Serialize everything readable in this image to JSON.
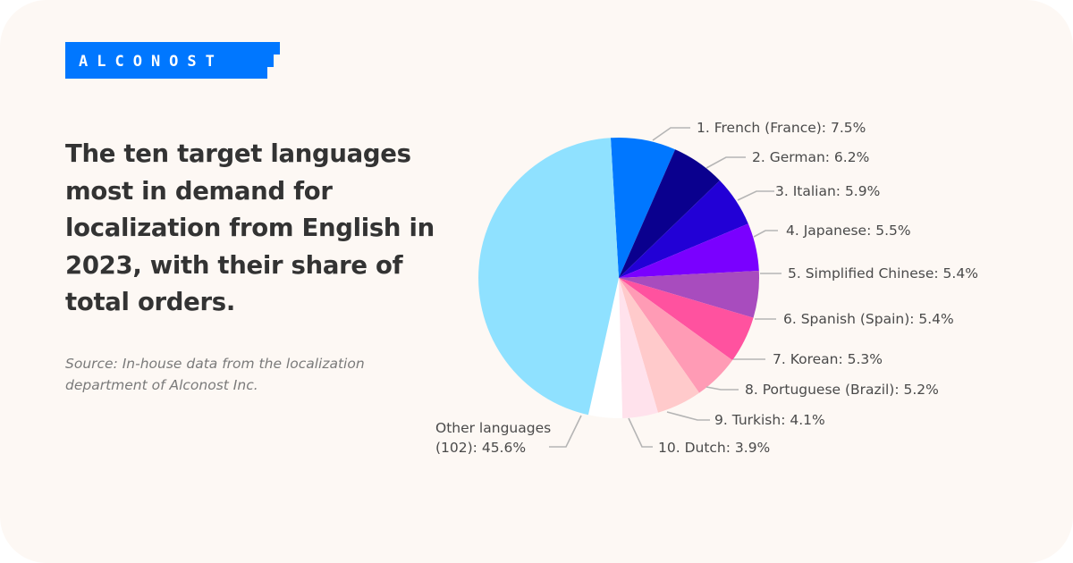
{
  "brand": {
    "name": "ALCONOST",
    "color": "#0077ff"
  },
  "heading": "The ten target languages most in demand for localization from English in 2023, with their share of total orders.",
  "source": "Source: In-house data from the localization department of Alconost Inc.",
  "chart_data": {
    "type": "pie",
    "title": "The ten target languages most in demand for localization from English in 2023, with their share of total orders.",
    "unit": "%",
    "start_angle_deg": -3.3,
    "direction": "clockwise",
    "categories": [
      "French (France)",
      "German",
      "Italian",
      "Japanese",
      "Simplified Chinese",
      "Spanish (Spain)",
      "Korean",
      "Portuguese (Brazil)",
      "Turkish",
      "Dutch",
      "Other languages (102)"
    ],
    "values": [
      7.5,
      6.2,
      5.9,
      5.5,
      5.4,
      5.4,
      5.3,
      5.2,
      4.1,
      3.9,
      45.6
    ],
    "colors": [
      "#0077ff",
      "#0a008e",
      "#2200d6",
      "#7a00ff",
      "#a84cbe",
      "#ff529f",
      "#ff9bb5",
      "#ffcacb",
      "#ffe2ec",
      "#ffffff",
      "#8fe1ff"
    ],
    "labels": [
      "1. French (France): 7.5%",
      "2. German: 6.2%",
      "3. Italian: 5.9%",
      "4. Japanese: 5.5%",
      "5. Simplified Chinese: 5.4%",
      "6. Spanish (Spain): 5.4%",
      "7. Korean: 5.3%",
      "8. Portuguese (Brazil): 5.2%",
      "9. Turkish: 4.1%",
      "10. Dutch: 3.9%",
      "Other languages (102): 45.6%"
    ],
    "legend": "none (leader-line labels)"
  },
  "labels": {
    "l1": "1. French (France): 7.5%",
    "l2": "2. German: 6.2%",
    "l3": "3. Italian: 5.9%",
    "l4": "4. Japanese: 5.5%",
    "l5": "5. Simplified Chinese: 5.4%",
    "l6": "6. Spanish (Spain): 5.4%",
    "l7": "7. Korean: 5.3%",
    "l8": "8. Portuguese (Brazil): 5.2%",
    "l9": "9. Turkish: 4.1%",
    "l10": "10. Dutch: 3.9%",
    "other_line1": "Other languages",
    "other_line2": "(102): 45.6%"
  }
}
